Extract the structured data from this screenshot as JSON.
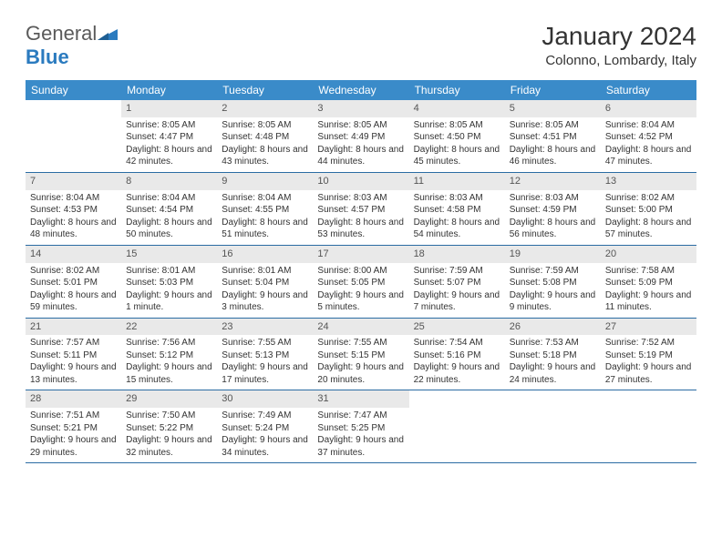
{
  "brand": {
    "name_gray": "General",
    "name_blue": "Blue"
  },
  "title": "January 2024",
  "location": "Colonno, Lombardy, Italy",
  "colors": {
    "header_bg": "#3a8bc9",
    "header_text": "#ffffff",
    "daynum_bg": "#e9e9e9",
    "week_border": "#2b6ca3",
    "text": "#333333"
  },
  "weekdays": [
    "Sunday",
    "Monday",
    "Tuesday",
    "Wednesday",
    "Thursday",
    "Friday",
    "Saturday"
  ],
  "weeks": [
    [
      {
        "n": "",
        "sr": "",
        "ss": "",
        "dl": ""
      },
      {
        "n": "1",
        "sr": "Sunrise: 8:05 AM",
        "ss": "Sunset: 4:47 PM",
        "dl": "Daylight: 8 hours and 42 minutes."
      },
      {
        "n": "2",
        "sr": "Sunrise: 8:05 AM",
        "ss": "Sunset: 4:48 PM",
        "dl": "Daylight: 8 hours and 43 minutes."
      },
      {
        "n": "3",
        "sr": "Sunrise: 8:05 AM",
        "ss": "Sunset: 4:49 PM",
        "dl": "Daylight: 8 hours and 44 minutes."
      },
      {
        "n": "4",
        "sr": "Sunrise: 8:05 AM",
        "ss": "Sunset: 4:50 PM",
        "dl": "Daylight: 8 hours and 45 minutes."
      },
      {
        "n": "5",
        "sr": "Sunrise: 8:05 AM",
        "ss": "Sunset: 4:51 PM",
        "dl": "Daylight: 8 hours and 46 minutes."
      },
      {
        "n": "6",
        "sr": "Sunrise: 8:04 AM",
        "ss": "Sunset: 4:52 PM",
        "dl": "Daylight: 8 hours and 47 minutes."
      }
    ],
    [
      {
        "n": "7",
        "sr": "Sunrise: 8:04 AM",
        "ss": "Sunset: 4:53 PM",
        "dl": "Daylight: 8 hours and 48 minutes."
      },
      {
        "n": "8",
        "sr": "Sunrise: 8:04 AM",
        "ss": "Sunset: 4:54 PM",
        "dl": "Daylight: 8 hours and 50 minutes."
      },
      {
        "n": "9",
        "sr": "Sunrise: 8:04 AM",
        "ss": "Sunset: 4:55 PM",
        "dl": "Daylight: 8 hours and 51 minutes."
      },
      {
        "n": "10",
        "sr": "Sunrise: 8:03 AM",
        "ss": "Sunset: 4:57 PM",
        "dl": "Daylight: 8 hours and 53 minutes."
      },
      {
        "n": "11",
        "sr": "Sunrise: 8:03 AM",
        "ss": "Sunset: 4:58 PM",
        "dl": "Daylight: 8 hours and 54 minutes."
      },
      {
        "n": "12",
        "sr": "Sunrise: 8:03 AM",
        "ss": "Sunset: 4:59 PM",
        "dl": "Daylight: 8 hours and 56 minutes."
      },
      {
        "n": "13",
        "sr": "Sunrise: 8:02 AM",
        "ss": "Sunset: 5:00 PM",
        "dl": "Daylight: 8 hours and 57 minutes."
      }
    ],
    [
      {
        "n": "14",
        "sr": "Sunrise: 8:02 AM",
        "ss": "Sunset: 5:01 PM",
        "dl": "Daylight: 8 hours and 59 minutes."
      },
      {
        "n": "15",
        "sr": "Sunrise: 8:01 AM",
        "ss": "Sunset: 5:03 PM",
        "dl": "Daylight: 9 hours and 1 minute."
      },
      {
        "n": "16",
        "sr": "Sunrise: 8:01 AM",
        "ss": "Sunset: 5:04 PM",
        "dl": "Daylight: 9 hours and 3 minutes."
      },
      {
        "n": "17",
        "sr": "Sunrise: 8:00 AM",
        "ss": "Sunset: 5:05 PM",
        "dl": "Daylight: 9 hours and 5 minutes."
      },
      {
        "n": "18",
        "sr": "Sunrise: 7:59 AM",
        "ss": "Sunset: 5:07 PM",
        "dl": "Daylight: 9 hours and 7 minutes."
      },
      {
        "n": "19",
        "sr": "Sunrise: 7:59 AM",
        "ss": "Sunset: 5:08 PM",
        "dl": "Daylight: 9 hours and 9 minutes."
      },
      {
        "n": "20",
        "sr": "Sunrise: 7:58 AM",
        "ss": "Sunset: 5:09 PM",
        "dl": "Daylight: 9 hours and 11 minutes."
      }
    ],
    [
      {
        "n": "21",
        "sr": "Sunrise: 7:57 AM",
        "ss": "Sunset: 5:11 PM",
        "dl": "Daylight: 9 hours and 13 minutes."
      },
      {
        "n": "22",
        "sr": "Sunrise: 7:56 AM",
        "ss": "Sunset: 5:12 PM",
        "dl": "Daylight: 9 hours and 15 minutes."
      },
      {
        "n": "23",
        "sr": "Sunrise: 7:55 AM",
        "ss": "Sunset: 5:13 PM",
        "dl": "Daylight: 9 hours and 17 minutes."
      },
      {
        "n": "24",
        "sr": "Sunrise: 7:55 AM",
        "ss": "Sunset: 5:15 PM",
        "dl": "Daylight: 9 hours and 20 minutes."
      },
      {
        "n": "25",
        "sr": "Sunrise: 7:54 AM",
        "ss": "Sunset: 5:16 PM",
        "dl": "Daylight: 9 hours and 22 minutes."
      },
      {
        "n": "26",
        "sr": "Sunrise: 7:53 AM",
        "ss": "Sunset: 5:18 PM",
        "dl": "Daylight: 9 hours and 24 minutes."
      },
      {
        "n": "27",
        "sr": "Sunrise: 7:52 AM",
        "ss": "Sunset: 5:19 PM",
        "dl": "Daylight: 9 hours and 27 minutes."
      }
    ],
    [
      {
        "n": "28",
        "sr": "Sunrise: 7:51 AM",
        "ss": "Sunset: 5:21 PM",
        "dl": "Daylight: 9 hours and 29 minutes."
      },
      {
        "n": "29",
        "sr": "Sunrise: 7:50 AM",
        "ss": "Sunset: 5:22 PM",
        "dl": "Daylight: 9 hours and 32 minutes."
      },
      {
        "n": "30",
        "sr": "Sunrise: 7:49 AM",
        "ss": "Sunset: 5:24 PM",
        "dl": "Daylight: 9 hours and 34 minutes."
      },
      {
        "n": "31",
        "sr": "Sunrise: 7:47 AM",
        "ss": "Sunset: 5:25 PM",
        "dl": "Daylight: 9 hours and 37 minutes."
      },
      {
        "n": "",
        "sr": "",
        "ss": "",
        "dl": ""
      },
      {
        "n": "",
        "sr": "",
        "ss": "",
        "dl": ""
      },
      {
        "n": "",
        "sr": "",
        "ss": "",
        "dl": ""
      }
    ]
  ]
}
